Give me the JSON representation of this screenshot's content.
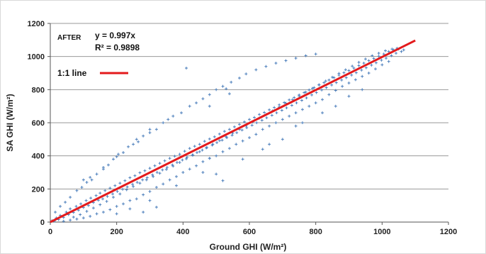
{
  "chart_data": {
    "type": "scatter",
    "title": "",
    "xlabel": "Ground GHI (W/m²)",
    "ylabel": "SA GHI (W/m²)",
    "xlim": [
      0,
      1200
    ],
    "ylim": [
      0,
      1200
    ],
    "xticks": [
      0,
      200,
      400,
      600,
      800,
      1000,
      1200
    ],
    "yticks": [
      0,
      200,
      400,
      600,
      800,
      1000,
      1200
    ],
    "grid": "horizontal",
    "legend_position": "top-left",
    "point_color": "#4f81bd",
    "line_color": "#e31a1c",
    "annotations": {
      "stage": "AFTER",
      "equation": "y = 0.997x",
      "r2": "R² = 0.9898",
      "legend_label": "1:1 line"
    },
    "fit_line": {
      "x": [
        0,
        1100
      ],
      "y": [
        0,
        1097
      ]
    },
    "series": [
      {
        "marker": "plus",
        "points": [
          [
            5,
            8
          ],
          [
            12,
            6
          ],
          [
            18,
            25
          ],
          [
            25,
            15
          ],
          [
            30,
            40
          ],
          [
            40,
            28
          ],
          [
            48,
            60
          ],
          [
            55,
            45
          ],
          [
            60,
            80
          ],
          [
            70,
            58
          ],
          [
            78,
            95
          ],
          [
            85,
            72
          ],
          [
            92,
            110
          ],
          [
            100,
            88
          ],
          [
            108,
            130
          ],
          [
            115,
            100
          ],
          [
            122,
            145
          ],
          [
            130,
            118
          ],
          [
            138,
            160
          ],
          [
            145,
            132
          ],
          [
            150,
            175
          ],
          [
            158,
            140
          ],
          [
            165,
            190
          ],
          [
            172,
            155
          ],
          [
            180,
            205
          ],
          [
            188,
            170
          ],
          [
            195,
            220
          ],
          [
            202,
            185
          ],
          [
            210,
            235
          ],
          [
            218,
            198
          ],
          [
            225,
            250
          ],
          [
            232,
            212
          ],
          [
            240,
            268
          ],
          [
            248,
            228
          ],
          [
            255,
            280
          ],
          [
            262,
            240
          ],
          [
            270,
            298
          ],
          [
            278,
            255
          ],
          [
            285,
            310
          ],
          [
            292,
            268
          ],
          [
            300,
            325
          ],
          [
            308,
            285
          ],
          [
            315,
            340
          ],
          [
            322,
            300
          ],
          [
            330,
            355
          ],
          [
            338,
            315
          ],
          [
            345,
            370
          ],
          [
            352,
            330
          ],
          [
            360,
            385
          ],
          [
            368,
            345
          ],
          [
            375,
            398
          ],
          [
            382,
            360
          ],
          [
            390,
            410
          ],
          [
            398,
            375
          ],
          [
            405,
            428
          ],
          [
            412,
            392
          ],
          [
            420,
            445
          ],
          [
            428,
            405
          ],
          [
            435,
            458
          ],
          [
            442,
            420
          ],
          [
            450,
            470
          ],
          [
            458,
            435
          ],
          [
            465,
            488
          ],
          [
            472,
            450
          ],
          [
            480,
            502
          ],
          [
            488,
            465
          ],
          [
            495,
            515
          ],
          [
            502,
            480
          ],
          [
            510,
            532
          ],
          [
            518,
            495
          ],
          [
            525,
            548
          ],
          [
            532,
            510
          ],
          [
            540,
            560
          ],
          [
            548,
            525
          ],
          [
            555,
            575
          ],
          [
            562,
            540
          ],
          [
            570,
            590
          ],
          [
            578,
            556
          ],
          [
            585,
            605
          ],
          [
            592,
            570
          ],
          [
            600,
            620
          ],
          [
            608,
            585
          ],
          [
            615,
            632
          ],
          [
            622,
            600
          ],
          [
            630,
            650
          ],
          [
            638,
            615
          ],
          [
            645,
            662
          ],
          [
            652,
            630
          ],
          [
            660,
            678
          ],
          [
            668,
            645
          ],
          [
            675,
            692
          ],
          [
            682,
            660
          ],
          [
            690,
            708
          ],
          [
            698,
            675
          ],
          [
            705,
            722
          ],
          [
            712,
            690
          ],
          [
            720,
            738
          ],
          [
            728,
            705
          ],
          [
            735,
            752
          ],
          [
            742,
            720
          ],
          [
            750,
            768
          ],
          [
            758,
            735
          ],
          [
            765,
            782
          ],
          [
            772,
            750
          ],
          [
            780,
            798
          ],
          [
            788,
            768
          ],
          [
            795,
            812
          ],
          [
            802,
            782
          ],
          [
            810,
            828
          ],
          [
            818,
            798
          ],
          [
            825,
            842
          ],
          [
            832,
            812
          ],
          [
            840,
            858
          ],
          [
            848,
            828
          ],
          [
            855,
            872
          ],
          [
            862,
            842
          ],
          [
            870,
            888
          ],
          [
            878,
            858
          ],
          [
            885,
            902
          ],
          [
            892,
            872
          ],
          [
            900,
            915
          ],
          [
            908,
            888
          ],
          [
            915,
            930
          ],
          [
            922,
            902
          ],
          [
            930,
            945
          ],
          [
            938,
            918
          ],
          [
            945,
            960
          ],
          [
            952,
            932
          ],
          [
            960,
            975
          ],
          [
            968,
            948
          ],
          [
            975,
            988
          ],
          [
            982,
            962
          ],
          [
            990,
            1002
          ],
          [
            998,
            978
          ],
          [
            1005,
            1015
          ],
          [
            1012,
            990
          ],
          [
            1020,
            1030
          ],
          [
            1028,
            1005
          ],
          [
            1035,
            1040
          ],
          [
            1042,
            1020
          ],
          [
            1050,
            1045
          ],
          [
            1058,
            1030
          ],
          [
            1065,
            1040
          ],
          [
            15,
            60
          ],
          [
            30,
            95
          ],
          [
            45,
            120
          ],
          [
            60,
            150
          ],
          [
            80,
            190
          ],
          [
            95,
            210
          ],
          [
            110,
            240
          ],
          [
            125,
            255
          ],
          [
            140,
            290
          ],
          [
            160,
            330
          ],
          [
            175,
            345
          ],
          [
            190,
            380
          ],
          [
            205,
            410
          ],
          [
            220,
            420
          ],
          [
            235,
            455
          ],
          [
            250,
            470
          ],
          [
            265,
            485
          ],
          [
            280,
            520
          ],
          [
            300,
            540
          ],
          [
            320,
            560
          ],
          [
            340,
            600
          ],
          [
            355,
            620
          ],
          [
            370,
            640
          ],
          [
            395,
            660
          ],
          [
            420,
            700
          ],
          [
            440,
            720
          ],
          [
            460,
            745
          ],
          [
            480,
            770
          ],
          [
            500,
            800
          ],
          [
            520,
            820
          ],
          [
            545,
            845
          ],
          [
            570,
            870
          ],
          [
            590,
            895
          ],
          [
            620,
            920
          ],
          [
            650,
            940
          ],
          [
            680,
            960
          ],
          [
            710,
            975
          ],
          [
            740,
            990
          ],
          [
            770,
            1005
          ],
          [
            800,
            1015
          ],
          [
            410,
            930
          ],
          [
            530,
            805
          ],
          [
            540,
            775
          ],
          [
            480,
            700
          ],
          [
            300,
            560
          ],
          [
            260,
            500
          ],
          [
            200,
            395
          ],
          [
            160,
            320
          ],
          [
            120,
            270
          ],
          [
            100,
            255
          ],
          [
            40,
            5
          ],
          [
            60,
            12
          ],
          [
            80,
            18
          ],
          [
            100,
            25
          ],
          [
            120,
            35
          ],
          [
            140,
            50
          ],
          [
            160,
            60
          ],
          [
            180,
            75
          ],
          [
            200,
            95
          ],
          [
            220,
            110
          ],
          [
            240,
            130
          ],
          [
            260,
            140
          ],
          [
            280,
            165
          ],
          [
            300,
            185
          ],
          [
            320,
            210
          ],
          [
            340,
            230
          ],
          [
            360,
            255
          ],
          [
            380,
            275
          ],
          [
            400,
            300
          ],
          [
            420,
            320
          ],
          [
            440,
            340
          ],
          [
            460,
            365
          ],
          [
            480,
            385
          ],
          [
            500,
            400
          ],
          [
            520,
            425
          ],
          [
            540,
            445
          ],
          [
            560,
            470
          ],
          [
            580,
            490
          ],
          [
            600,
            510
          ],
          [
            620,
            530
          ],
          [
            640,
            560
          ],
          [
            660,
            580
          ],
          [
            680,
            600
          ],
          [
            700,
            620
          ],
          [
            720,
            640
          ],
          [
            740,
            660
          ],
          [
            760,
            680
          ],
          [
            780,
            700
          ],
          [
            800,
            720
          ],
          [
            820,
            740
          ],
          [
            840,
            770
          ],
          [
            860,
            795
          ],
          [
            880,
            820
          ],
          [
            900,
            840
          ],
          [
            920,
            860
          ],
          [
            940,
            880
          ],
          [
            960,
            900
          ],
          [
            980,
            925
          ],
          [
            1000,
            950
          ],
          [
            1020,
            970
          ],
          [
            480,
            385
          ],
          [
            500,
            290
          ],
          [
            460,
            300
          ],
          [
            380,
            220
          ],
          [
            300,
            130
          ],
          [
            240,
            80
          ],
          [
            200,
            50
          ],
          [
            640,
            440
          ],
          [
            660,
            470
          ],
          [
            700,
            500
          ],
          [
            740,
            580
          ],
          [
            820,
            660
          ],
          [
            860,
            700
          ],
          [
            900,
            760
          ],
          [
            940,
            800
          ],
          [
            320,
            90
          ],
          [
            280,
            60
          ],
          [
            520,
            250
          ],
          [
            580,
            380
          ],
          [
            760,
            600
          ],
          [
            70,
            30
          ],
          [
            90,
            45
          ],
          [
            110,
            65
          ],
          [
            130,
            85
          ],
          [
            150,
            105
          ],
          [
            170,
            125
          ],
          [
            190,
            150
          ],
          [
            210,
            170
          ],
          [
            230,
            195
          ],
          [
            250,
            215
          ],
          [
            270,
            235
          ],
          [
            290,
            255
          ],
          [
            310,
            275
          ],
          [
            330,
            295
          ],
          [
            350,
            318
          ],
          [
            370,
            338
          ],
          [
            390,
            360
          ],
          [
            410,
            382
          ],
          [
            430,
            405
          ],
          [
            450,
            425
          ],
          [
            470,
            448
          ],
          [
            490,
            470
          ],
          [
            510,
            492
          ],
          [
            530,
            515
          ],
          [
            550,
            538
          ],
          [
            570,
            560
          ],
          [
            590,
            582
          ],
          [
            610,
            605
          ],
          [
            630,
            628
          ],
          [
            650,
            650
          ],
          [
            670,
            672
          ],
          [
            690,
            695
          ],
          [
            710,
            718
          ],
          [
            730,
            740
          ],
          [
            750,
            762
          ],
          [
            770,
            785
          ],
          [
            790,
            808
          ],
          [
            810,
            830
          ],
          [
            830,
            852
          ],
          [
            850,
            875
          ],
          [
            870,
            898
          ],
          [
            890,
            920
          ],
          [
            910,
            942
          ],
          [
            930,
            965
          ],
          [
            950,
            985
          ],
          [
            970,
            1005
          ],
          [
            990,
            1020
          ],
          [
            1010,
            1035
          ],
          [
            1030,
            1045
          ],
          [
            1045,
            1050
          ]
        ]
      }
    ]
  }
}
